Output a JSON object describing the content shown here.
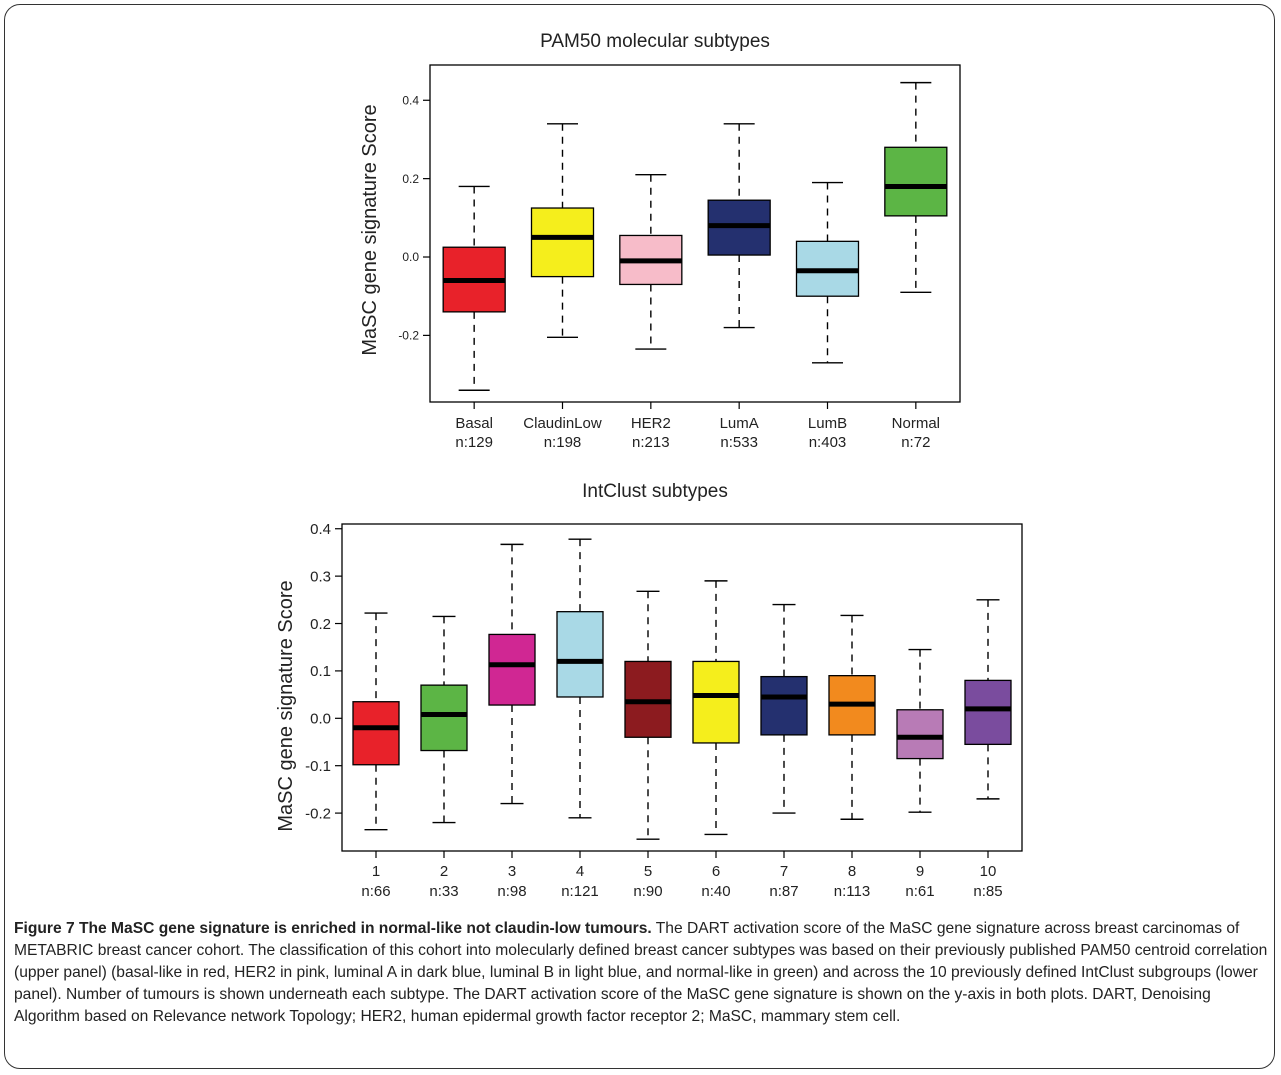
{
  "chart_data": [
    {
      "type": "box",
      "title": "PAM50 molecular subtypes",
      "ylabel": "MaSC gene signature Score",
      "ylim": [
        -0.37,
        0.49
      ],
      "yticks": [
        -0.2,
        0.0,
        0.2,
        0.4
      ],
      "ytick_labels": [
        "-0.2",
        "0.0",
        "0.2",
        "0.4"
      ],
      "grid": false,
      "boxes": [
        {
          "label": "Basal",
          "n": "n:129",
          "color": "#e8222a",
          "whisker_low": -0.34,
          "q1": -0.14,
          "median": -0.06,
          "q3": 0.025,
          "whisker_high": 0.18
        },
        {
          "label": "ClaudinLow",
          "n": "n:198",
          "color": "#f5ee1c",
          "whisker_low": -0.205,
          "q1": -0.05,
          "median": 0.05,
          "q3": 0.125,
          "whisker_high": 0.34
        },
        {
          "label": "HER2",
          "n": "n:213",
          "color": "#f7bcc9",
          "whisker_low": -0.235,
          "q1": -0.07,
          "median": -0.01,
          "q3": 0.055,
          "whisker_high": 0.21
        },
        {
          "label": "LumA",
          "n": "n:533",
          "color": "#24306f",
          "whisker_low": -0.18,
          "q1": 0.005,
          "median": 0.08,
          "q3": 0.145,
          "whisker_high": 0.34
        },
        {
          "label": "LumB",
          "n": "n:403",
          "color": "#a9d9e6",
          "whisker_low": -0.27,
          "q1": -0.1,
          "median": -0.035,
          "q3": 0.04,
          "whisker_high": 0.19
        },
        {
          "label": "Normal",
          "n": "n:72",
          "color": "#5cb545",
          "whisker_low": -0.09,
          "q1": 0.105,
          "median": 0.18,
          "q3": 0.28,
          "whisker_high": 0.445
        }
      ]
    },
    {
      "type": "box",
      "title": "IntClust subtypes",
      "ylabel": "MaSC gene signature Score",
      "ylim": [
        -0.28,
        0.41
      ],
      "yticks": [
        -0.2,
        -0.1,
        0.0,
        0.1,
        0.2,
        0.3,
        0.4
      ],
      "ytick_labels": [
        "-0.2",
        "-0.1",
        "0.0",
        "0.1",
        "0.2",
        "0.3",
        "0.4"
      ],
      "grid": false,
      "boxes": [
        {
          "label": "1",
          "n": "n:66",
          "color": "#e8222a",
          "whisker_low": -0.235,
          "q1": -0.098,
          "median": -0.02,
          "q3": 0.035,
          "whisker_high": 0.222
        },
        {
          "label": "2",
          "n": "n:33",
          "color": "#5cb545",
          "whisker_low": -0.22,
          "q1": -0.068,
          "median": 0.008,
          "q3": 0.07,
          "whisker_high": 0.215
        },
        {
          "label": "3",
          "n": "n:98",
          "color": "#d02793",
          "whisker_low": -0.18,
          "q1": 0.028,
          "median": 0.113,
          "q3": 0.177,
          "whisker_high": 0.367
        },
        {
          "label": "4",
          "n": "n:121",
          "color": "#a9d9e6",
          "whisker_low": -0.21,
          "q1": 0.045,
          "median": 0.12,
          "q3": 0.225,
          "whisker_high": 0.378
        },
        {
          "label": "5",
          "n": "n:90",
          "color": "#8c1b1f",
          "whisker_low": -0.255,
          "q1": -0.04,
          "median": 0.035,
          "q3": 0.12,
          "whisker_high": 0.268
        },
        {
          "label": "6",
          "n": "n:40",
          "color": "#f5ee1c",
          "whisker_low": -0.245,
          "q1": -0.052,
          "median": 0.048,
          "q3": 0.12,
          "whisker_high": 0.29
        },
        {
          "label": "7",
          "n": "n:87",
          "color": "#24306f",
          "whisker_low": -0.2,
          "q1": -0.035,
          "median": 0.045,
          "q3": 0.088,
          "whisker_high": 0.24
        },
        {
          "label": "8",
          "n": "n:113",
          "color": "#f28a1e",
          "whisker_low": -0.213,
          "q1": -0.035,
          "median": 0.03,
          "q3": 0.09,
          "whisker_high": 0.217
        },
        {
          "label": "9",
          "n": "n:61",
          "color": "#b87bb6",
          "whisker_low": -0.198,
          "q1": -0.085,
          "median": -0.04,
          "q3": 0.018,
          "whisker_high": 0.145
        },
        {
          "label": "10",
          "n": "n:85",
          "color": "#7a4c9e",
          "whisker_low": -0.17,
          "q1": -0.055,
          "median": 0.02,
          "q3": 0.08,
          "whisker_high": 0.25
        }
      ]
    }
  ],
  "caption": {
    "title": "Figure 7 The MaSC gene signature is enriched in normal-like not claudin-low tumours.",
    "body": " The DART activation score of the MaSC gene signature across breast carcinomas of METABRIC breast cancer cohort. The classification of this cohort into molecularly defined breast cancer subtypes was based on their previously published PAM50 centroid correlation (upper panel) (basal-like in red, HER2 in pink, luminal A in dark blue, luminal B in light blue, and normal-like in green) and across the 10 previously defined IntClust subgroups (lower panel). Number of tumours is shown underneath each subtype. The DART activation score of the MaSC gene signature is shown on the y-axis in both plots. DART, Denoising Algorithm based on Relevance network Topology; HER2, human epidermal growth factor receptor 2; MaSC, mammary stem cell."
  }
}
